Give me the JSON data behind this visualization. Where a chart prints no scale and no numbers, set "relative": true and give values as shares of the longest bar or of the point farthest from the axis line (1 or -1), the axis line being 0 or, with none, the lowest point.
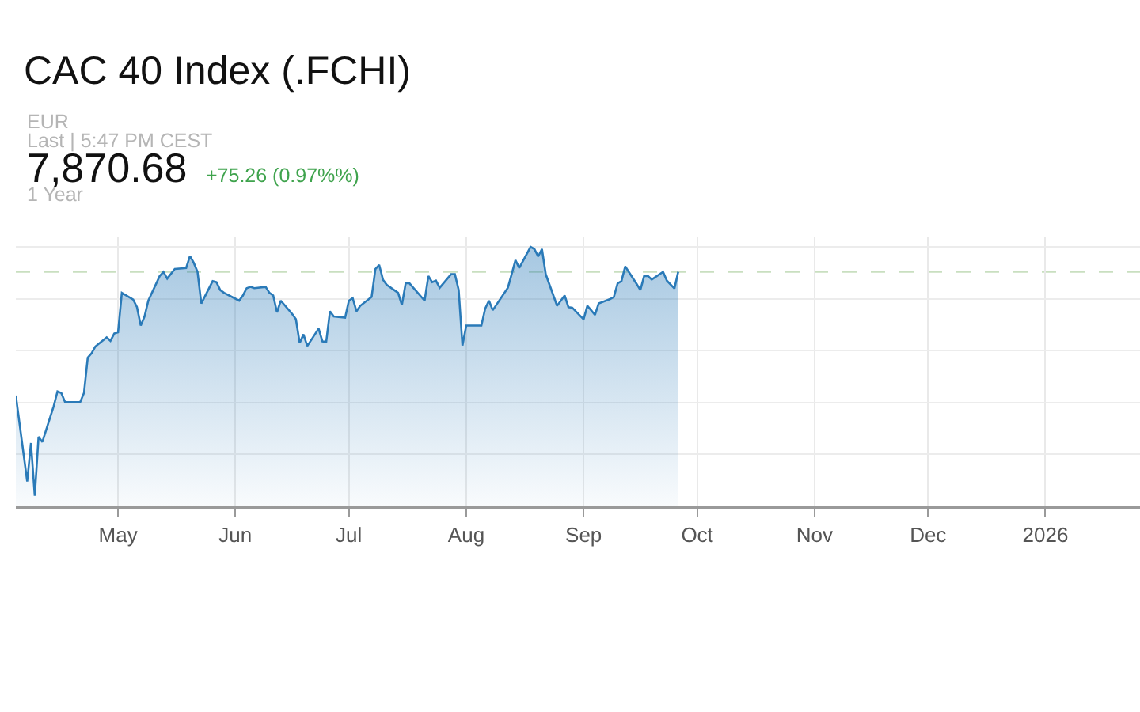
{
  "chart_data": {
    "type": "area",
    "title": "CAC 40 Index (.FCHI)",
    "annotations": [
      "EUR",
      "Last | 5:47 PM CEST",
      "7,870.68",
      "+75.26 (0.97%%)",
      "1 Year"
    ],
    "relative": true,
    "x": [
      "2025-04-04",
      "2025-04-07",
      "2025-04-08",
      "2025-04-09",
      "2025-04-10",
      "2025-04-11",
      "2025-04-14",
      "2025-04-15",
      "2025-04-16",
      "2025-04-17",
      "2025-04-18",
      "2025-04-21",
      "2025-04-22",
      "2025-04-23",
      "2025-04-24",
      "2025-04-25",
      "2025-04-28",
      "2025-04-29",
      "2025-04-30",
      "2025-05-01",
      "2025-05-02",
      "2025-05-05",
      "2025-05-06",
      "2025-05-07",
      "2025-05-08",
      "2025-05-09",
      "2025-05-12",
      "2025-05-13",
      "2025-05-14",
      "2025-05-16",
      "2025-05-19",
      "2025-05-20",
      "2025-05-21",
      "2025-05-22",
      "2025-05-23",
      "2025-05-26",
      "2025-05-27",
      "2025-05-28",
      "2025-05-29",
      "2025-06-02",
      "2025-06-03",
      "2025-06-04",
      "2025-06-05",
      "2025-06-06",
      "2025-06-09",
      "2025-06-10",
      "2025-06-11",
      "2025-06-12",
      "2025-06-13",
      "2025-06-16",
      "2025-06-17",
      "2025-06-18",
      "2025-06-19",
      "2025-06-20",
      "2025-06-23",
      "2025-06-24",
      "2025-06-25",
      "2025-06-26",
      "2025-06-27",
      "2025-06-30",
      "2025-07-01",
      "2025-07-02",
      "2025-07-03",
      "2025-07-04",
      "2025-07-07",
      "2025-07-08",
      "2025-07-09",
      "2025-07-10",
      "2025-07-11",
      "2025-07-14",
      "2025-07-15",
      "2025-07-16",
      "2025-07-17",
      "2025-07-18",
      "2025-07-21",
      "2025-07-22",
      "2025-07-23",
      "2025-07-24",
      "2025-07-25",
      "2025-07-28",
      "2025-07-29",
      "2025-07-30",
      "2025-07-31",
      "2025-08-01",
      "2025-08-05",
      "2025-08-06",
      "2025-08-07",
      "2025-08-08",
      "2025-08-12",
      "2025-08-13",
      "2025-08-14",
      "2025-08-15",
      "2025-08-18",
      "2025-08-19",
      "2025-08-20",
      "2025-08-21",
      "2025-08-22",
      "2025-08-25",
      "2025-08-26",
      "2025-08-27",
      "2025-08-28",
      "2025-08-29",
      "2025-09-01",
      "2025-09-02",
      "2025-09-03",
      "2025-09-04",
      "2025-09-05",
      "2025-09-08",
      "2025-09-09",
      "2025-09-10",
      "2025-09-11",
      "2025-09-12",
      "2025-09-15",
      "2025-09-16",
      "2025-09-17",
      "2025-09-18",
      "2025-09-19",
      "2025-09-22",
      "2025-09-23",
      "2025-09-25",
      "2025-09-26"
    ],
    "series": [
      {
        "color": "#2a7ab8",
        "values": [
          0.427,
          0.096,
          0.244,
          0.041,
          0.268,
          0.248,
          0.386,
          0.443,
          0.437,
          0.402,
          0.402,
          0.402,
          0.437,
          0.573,
          0.59,
          0.616,
          0.651,
          0.638,
          0.666,
          0.671,
          0.823,
          0.797,
          0.768,
          0.697,
          0.732,
          0.793,
          0.888,
          0.904,
          0.878,
          0.915,
          0.919,
          0.965,
          0.939,
          0.904,
          0.782,
          0.868,
          0.864,
          0.834,
          0.823,
          0.793,
          0.813,
          0.841,
          0.846,
          0.841,
          0.846,
          0.823,
          0.813,
          0.748,
          0.793,
          0.742,
          0.721,
          0.63,
          0.663,
          0.618,
          0.685,
          0.636,
          0.634,
          0.752,
          0.732,
          0.727,
          0.793,
          0.803,
          0.752,
          0.773,
          0.807,
          0.915,
          0.931,
          0.874,
          0.854,
          0.823,
          0.776,
          0.86,
          0.86,
          0.843,
          0.793,
          0.888,
          0.864,
          0.87,
          0.843,
          0.895,
          0.895,
          0.834,
          0.62,
          0.697,
          0.697,
          0.762,
          0.793,
          0.756,
          0.843,
          0.895,
          0.949,
          0.919,
          1,
          0.992,
          0.963,
          0.992,
          0.895,
          0.773,
          0.793,
          0.813,
          0.768,
          0.766,
          0.721,
          0.773,
          0.756,
          0.738,
          0.782,
          0.799,
          0.807,
          0.86,
          0.868,
          0.925,
          0.858,
          0.834,
          0.888,
          0.888,
          0.874,
          0.904,
          0.87,
          0.84,
          0.904
        ]
      }
    ],
    "xlim": [
      "2025-04-04",
      "2026-01-26"
    ],
    "xticks": [
      {
        "value": "2025-05-01",
        "label": "May"
      },
      {
        "value": "2025-06-01",
        "label": "Jun"
      },
      {
        "value": "2025-07-01",
        "label": "Jul"
      },
      {
        "value": "2025-08-01",
        "label": "Aug"
      },
      {
        "value": "2025-09-01",
        "label": "Sep"
      },
      {
        "value": "2025-10-01",
        "label": "Oct"
      },
      {
        "value": "2025-11-01",
        "label": "Nov"
      },
      {
        "value": "2025-12-01",
        "label": "Dec"
      },
      {
        "value": "2026-01-01",
        "label": "2026"
      }
    ],
    "ref_lines": [
      {
        "axis": "y",
        "value": 0.904,
        "color": "#c9dfc0",
        "line_style": "dashed"
      }
    ],
    "grid": true
  }
}
